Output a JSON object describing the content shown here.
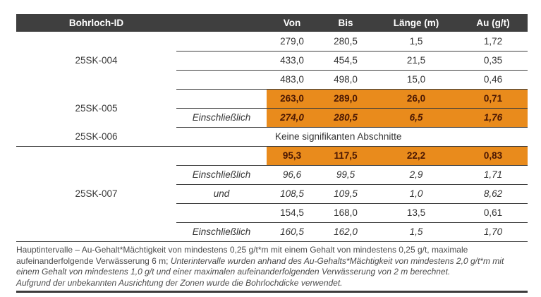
{
  "table": {
    "headers": {
      "id": "Bohrloch-ID",
      "von": "Von",
      "bis": "Bis",
      "laenge": "Länge (m)",
      "au": "Au (g/t)"
    },
    "groups": {
      "g004": "25SK-004",
      "g005": "25SK-005",
      "g006": "25SK-006",
      "g007": "25SK-007"
    },
    "no_intervals_text": "Keine signifikanten Abschnitte",
    "rows": {
      "r1": {
        "qual": "",
        "von": "279,0",
        "bis": "280,5",
        "len": "1,5",
        "au": "1,72"
      },
      "r2": {
        "qual": "",
        "von": "433,0",
        "bis": "454,5",
        "len": "21,5",
        "au": "0,35"
      },
      "r3": {
        "qual": "",
        "von": "483,0",
        "bis": "498,0",
        "len": "15,0",
        "au": "0,46"
      },
      "r4": {
        "qual": "",
        "von": "263,0",
        "bis": "289,0",
        "len": "26,0",
        "au": "0,71"
      },
      "r5": {
        "qual": "Einschließlich",
        "von": "274,0",
        "bis": "280,5",
        "len": "6,5",
        "au": "1,76"
      },
      "r7": {
        "qual": "",
        "von": "95,3",
        "bis": "117,5",
        "len": "22,2",
        "au": "0,83"
      },
      "r8": {
        "qual": "Einschließlich",
        "von": "96,6",
        "bis": "99,5",
        "len": "2,9",
        "au": "1,71"
      },
      "r9": {
        "qual": "und",
        "von": "108,5",
        "bis": "109,5",
        "len": "1,0",
        "au": "8,62"
      },
      "r10": {
        "qual": "",
        "von": "154,5",
        "bis": "168,0",
        "len": "13,5",
        "au": "0,61"
      },
      "r11": {
        "qual": "Einschließlich",
        "von": "160,5",
        "bis": "162,0",
        "len": "1,5",
        "au": "1,70"
      }
    }
  },
  "footnote": {
    "regular": "Hauptintervalle – Au-Gehalt*Mächtigkeit von mindestens 0,25 g/t*m mit einem Gehalt von mindestens 0,25 g/t, maximale aufeinanderfolgende Verwässerung 6 m; ",
    "italic": "Unterintervalle wurden anhand des Au-Gehalts*Mächtigkeit von mindestens 2,0 g/t*m mit einem Gehalt von mindestens 1,0 g/t und einer maximalen aufeinanderfolgenden Verwässerung von 2 m berechnet.",
    "italic_line2": "Aufgrund der unbekannten Ausrichtung der Zonen wurde die Bohrlochdicke verwendet."
  },
  "colors": {
    "header_bg": "#3f3f3f",
    "highlight_orange": "#e98b1c",
    "highlight_text": "#4a1703",
    "rule_dark": "#3c3c3c"
  }
}
